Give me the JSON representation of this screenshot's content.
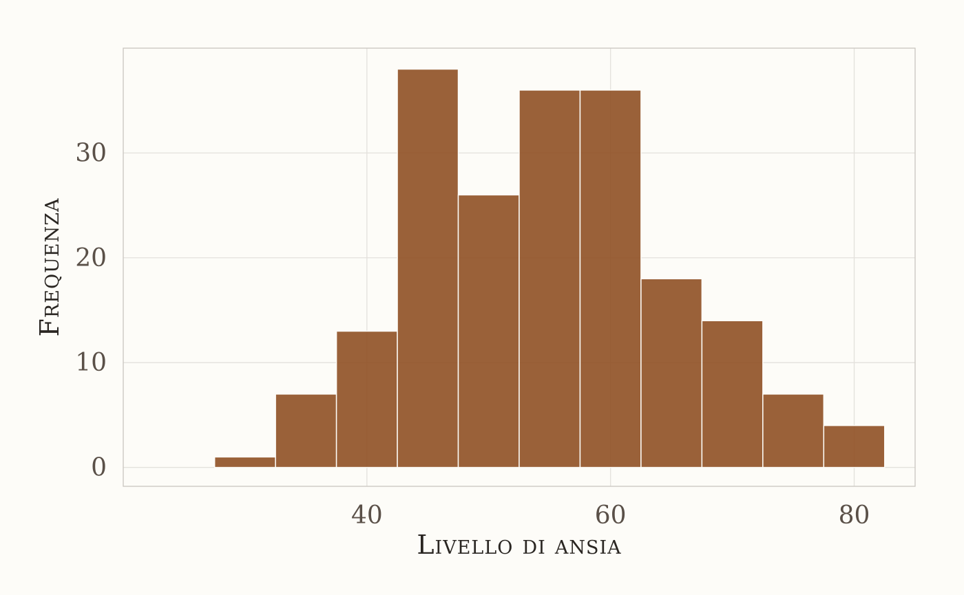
{
  "chart_data": {
    "type": "bar",
    "subtype": "histogram",
    "title": "",
    "xlabel": "Livello di ansia",
    "ylabel": "Frequenza",
    "bin_width": 5,
    "bins": [
      {
        "x_start": 27.5,
        "x_end": 32.5,
        "count": 1
      },
      {
        "x_start": 32.5,
        "x_end": 37.5,
        "count": 7
      },
      {
        "x_start": 37.5,
        "x_end": 42.5,
        "count": 13
      },
      {
        "x_start": 42.5,
        "x_end": 47.5,
        "count": 38
      },
      {
        "x_start": 47.5,
        "x_end": 52.5,
        "count": 26
      },
      {
        "x_start": 52.5,
        "x_end": 57.5,
        "count": 36
      },
      {
        "x_start": 57.5,
        "x_end": 62.5,
        "count": 36
      },
      {
        "x_start": 62.5,
        "x_end": 67.5,
        "count": 18
      },
      {
        "x_start": 67.5,
        "x_end": 72.5,
        "count": 14
      },
      {
        "x_start": 72.5,
        "x_end": 77.5,
        "count": 7
      },
      {
        "x_start": 77.5,
        "x_end": 82.5,
        "count": 4
      }
    ],
    "xlim": [
      20,
      85
    ],
    "ylim": [
      -1.8,
      40
    ],
    "x_ticks": [
      40,
      60,
      80
    ],
    "y_ticks": [
      0,
      10,
      20,
      30
    ],
    "x_tick_labels": [
      "40",
      "60",
      "80"
    ],
    "y_tick_labels": [
      "0",
      "10",
      "20",
      "30"
    ],
    "x_grid": [
      40,
      60,
      80
    ],
    "y_grid": [
      0,
      10,
      20,
      30
    ],
    "grid": true,
    "legend": "none",
    "colors": {
      "bar_fill": "#8f5024",
      "bar_edge": "#fdfcf8",
      "grid": "#e3e1dc",
      "frame": "#c9c5bf",
      "background": "#fdfcf8"
    }
  }
}
